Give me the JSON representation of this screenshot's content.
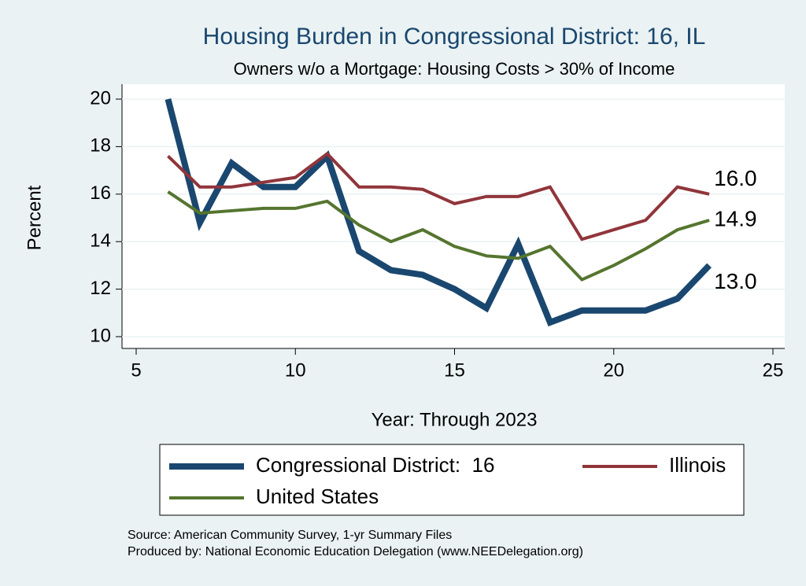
{
  "chart_data": {
    "type": "line",
    "title": "Housing Burden in Congressional District:  16, IL",
    "subtitle": "Owners w/o a Mortgage: Housing Costs > 30% of Income",
    "x_label": "Year: Through 2023",
    "y_label": "Percent",
    "x": [
      6,
      7,
      8,
      9,
      10,
      11,
      12,
      13,
      14,
      15,
      16,
      17,
      18,
      19,
      20,
      21,
      22,
      23
    ],
    "series": [
      {
        "name": "Congressional District:  16",
        "color": "#1a476f",
        "end_label": "13.0",
        "values": [
          20.0,
          14.8,
          17.3,
          16.3,
          16.3,
          17.6,
          13.6,
          12.8,
          12.6,
          12.0,
          11.2,
          13.9,
          10.6,
          11.1,
          11.1,
          11.1,
          11.6,
          13.0
        ]
      },
      {
        "name": "Illinois",
        "color": "#90353b",
        "end_label": "16.0",
        "values": [
          17.6,
          16.3,
          16.3,
          16.5,
          16.7,
          17.7,
          16.3,
          16.3,
          16.2,
          15.6,
          15.9,
          15.9,
          16.3,
          14.1,
          14.5,
          14.9,
          16.3,
          16.0
        ]
      },
      {
        "name": "United States",
        "color": "#55752f",
        "end_label": "14.9",
        "values": [
          16.1,
          15.2,
          15.3,
          15.4,
          15.4,
          15.7,
          14.7,
          14.0,
          14.5,
          13.8,
          13.4,
          13.3,
          13.8,
          12.4,
          13.0,
          13.7,
          14.5,
          14.9
        ]
      }
    ],
    "xlim": [
      5,
      25
    ],
    "xticks": [
      5,
      10,
      15,
      20,
      25
    ],
    "ylim": [
      10,
      20
    ],
    "yticks": [
      10,
      12,
      14,
      16,
      18,
      20
    ],
    "grid": true,
    "source": "Source: American Community Survey, 1-yr Summary Files",
    "produced_by": "Produced by: National Economic Education Delegation (www.NEEDelegation.org)"
  }
}
